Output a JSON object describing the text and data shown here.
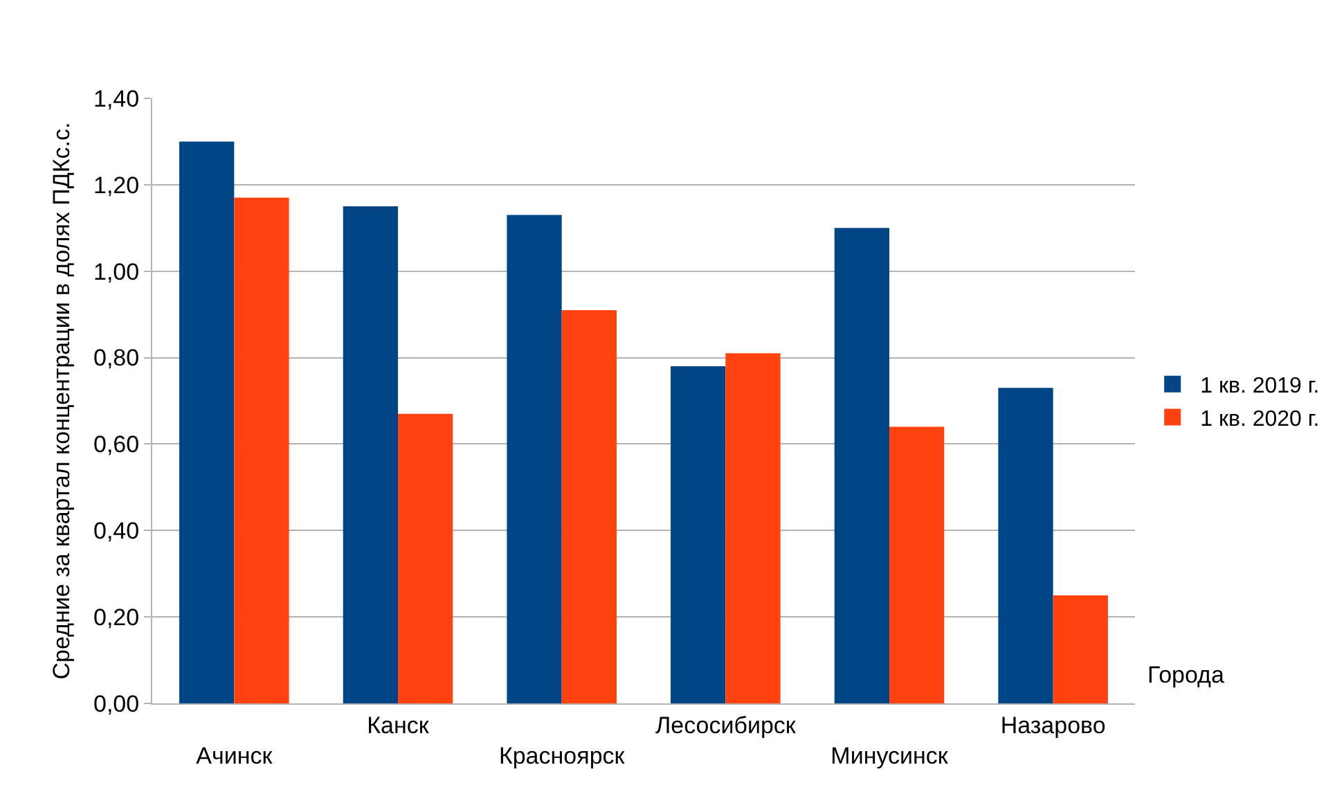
{
  "chart_data": {
    "type": "bar",
    "ylabel": "Средние за квартал концентрации в долях ПДКс.с.",
    "xlabel": "Города",
    "categories": [
      "Ачинск",
      "Канск",
      "Красноярск",
      "Лесосибирск",
      "Минусинск",
      "Назарово"
    ],
    "series": [
      {
        "name": "1 кв. 2019 г.",
        "color": "#004586",
        "values": [
          1.3,
          1.15,
          1.13,
          0.78,
          1.1,
          0.73
        ]
      },
      {
        "name": "1 кв. 2020 г.",
        "color": "#ff420e",
        "values": [
          1.17,
          0.67,
          0.91,
          0.81,
          0.64,
          0.25
        ]
      }
    ],
    "ylim": [
      0,
      1.4
    ],
    "yticks": [
      {
        "value": 0,
        "label": "0,00"
      },
      {
        "value": 0.2,
        "label": "0,20"
      },
      {
        "value": 0.4,
        "label": "0,40"
      },
      {
        "value": 0.6,
        "label": "0,60"
      },
      {
        "value": 0.8,
        "label": "0,80"
      },
      {
        "value": 1.0,
        "label": "1,00"
      },
      {
        "value": 1.2,
        "label": "1,20"
      },
      {
        "value": 1.4,
        "label": "1,40"
      }
    ],
    "grid": "y",
    "legend": "right"
  }
}
